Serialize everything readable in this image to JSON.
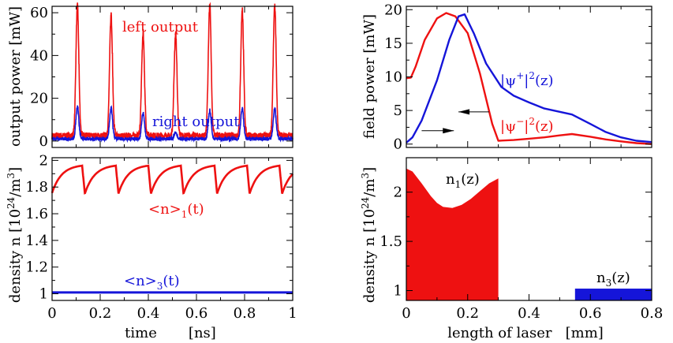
{
  "colors": {
    "red": "#ee1111",
    "blue": "#1515d9",
    "black": "#000000"
  },
  "chart_data": [
    {
      "id": "output_power",
      "type": "line",
      "xlabel": "",
      "ylabel": "output power [mW]",
      "xlim": [
        0,
        1
      ],
      "ylim": [
        -3,
        63
      ],
      "xticks": [
        0,
        0.2,
        0.4,
        0.6,
        0.8,
        1
      ],
      "yticks": [
        0,
        20,
        40,
        60
      ],
      "ytick_labels": [
        "0",
        "20",
        "40",
        "60"
      ],
      "annotations": [
        {
          "text": "left  output",
          "color": "red"
        },
        {
          "text": "right output",
          "color": "blue"
        }
      ],
      "series": [
        {
          "color": "red",
          "pulse_times": [
            0.105,
            0.245,
            0.378,
            0.513,
            0.655,
            0.79,
            0.925
          ],
          "pulse_peaks": [
            60,
            56,
            47,
            47,
            60,
            58,
            60
          ],
          "baseline": 2.5,
          "noise": 1.5
        },
        {
          "color": "blue",
          "pulse_times": [
            0.105,
            0.245,
            0.378,
            0.513,
            0.655,
            0.79,
            0.925
          ],
          "pulse_peaks": [
            15,
            14,
            12,
            3,
            13,
            14,
            14
          ],
          "baseline": 1.0,
          "noise": 0.8
        }
      ]
    },
    {
      "id": "density_time",
      "type": "line",
      "xlabel": "time       [ns]",
      "ylabel": "density n  [10²⁴/m³]",
      "xlim": [
        0,
        1
      ],
      "ylim": [
        0.95,
        2.02
      ],
      "xticks": [
        0,
        0.2,
        0.4,
        0.6,
        0.8,
        1
      ],
      "xtick_labels": [
        "0",
        "0.2",
        "0.4",
        "0.6",
        "0.8",
        "1"
      ],
      "yticks": [
        1,
        1.2,
        1.4,
        1.6,
        1.8,
        2
      ],
      "ytick_labels": [
        "1",
        "1.2",
        "1.4",
        "1.6",
        "1.8",
        "2"
      ],
      "annotations": [
        {
          "text": "<n>1(t)",
          "color": "red"
        },
        {
          "text": "<n>3(t)",
          "color": "blue"
        }
      ],
      "series": [
        {
          "color": "red",
          "sawtooth_min": 1.75,
          "sawtooth_max": 1.96,
          "drop_times": [
            0.125,
            0.265,
            0.4,
            0.535,
            0.675,
            0.81,
            0.945
          ]
        },
        {
          "color": "blue",
          "constant": 1.01
        }
      ]
    },
    {
      "id": "field_power",
      "type": "line",
      "xlabel": "",
      "ylabel": "field power [mW]",
      "xlim": [
        0,
        0.8
      ],
      "ylim": [
        -0.5,
        20.5
      ],
      "xticks": [
        0,
        0.2,
        0.4,
        0.6,
        0.8
      ],
      "yticks": [
        0,
        5,
        10,
        15,
        20
      ],
      "ytick_labels": [
        "0",
        "5",
        "10",
        "15",
        "20"
      ],
      "annotations": [
        {
          "text": "|ψ⁺|²(z)",
          "color": "blue"
        },
        {
          "text": "|ψ⁻|²(z)",
          "color": "red"
        }
      ],
      "series": [
        {
          "color": "red",
          "x": [
            0,
            0.015,
            0.03,
            0.06,
            0.1,
            0.13,
            0.16,
            0.2,
            0.24,
            0.28,
            0.3,
            0.35,
            0.4,
            0.45,
            0.5,
            0.54,
            0.6,
            0.65,
            0.7,
            0.75,
            0.8
          ],
          "y": [
            9.8,
            9.9,
            11.5,
            15.5,
            18.7,
            19.5,
            19.0,
            16.5,
            10.5,
            3.0,
            0.5,
            0.6,
            0.8,
            1.0,
            1.3,
            1.5,
            1.1,
            0.7,
            0.4,
            0.15,
            0.0
          ]
        },
        {
          "color": "blue",
          "x": [
            0,
            0.02,
            0.05,
            0.1,
            0.14,
            0.17,
            0.19,
            0.22,
            0.26,
            0.31,
            0.35,
            0.4,
            0.45,
            0.5,
            0.54,
            0.6,
            0.65,
            0.7,
            0.75,
            0.8
          ],
          "y": [
            0.2,
            1.0,
            3.5,
            9.5,
            15.5,
            19.0,
            19.3,
            16.5,
            12.0,
            8.5,
            7.2,
            6.2,
            5.3,
            4.8,
            4.4,
            3.0,
            1.8,
            1.0,
            0.5,
            0.3
          ]
        }
      ],
      "arrows": [
        {
          "direction": "right",
          "from": [
            0.05,
            2.0
          ],
          "to": [
            0.155,
            2.0
          ]
        },
        {
          "direction": "left",
          "from": [
            0.27,
            4.8
          ],
          "to": [
            0.17,
            4.8
          ]
        }
      ]
    },
    {
      "id": "density_z",
      "type": "area",
      "xlabel": "length of laser   [mm]",
      "ylabel": "density n  [10²⁴/m³]",
      "xlim": [
        0,
        0.8
      ],
      "ylim": [
        0.9,
        2.35
      ],
      "xticks": [
        0,
        0.2,
        0.4,
        0.6,
        0.8
      ],
      "xtick_labels": [
        "0",
        "0.2",
        "0.4",
        "0.6",
        "0.8"
      ],
      "yticks": [
        1,
        1.5,
        2
      ],
      "ytick_labels": [
        "1",
        "1.5",
        "2"
      ],
      "annotations": [
        {
          "text": "n1(z)",
          "color": "black"
        },
        {
          "text": "n3(z)",
          "color": "black"
        }
      ],
      "series": [
        {
          "color": "red",
          "x": [
            0,
            0.02,
            0.05,
            0.08,
            0.1,
            0.12,
            0.15,
            0.18,
            0.21,
            0.24,
            0.27,
            0.3
          ],
          "y": [
            2.24,
            2.21,
            2.09,
            1.96,
            1.89,
            1.85,
            1.84,
            1.87,
            1.93,
            2.01,
            2.09,
            2.14
          ]
        },
        {
          "color": "blue",
          "x": [
            0.55,
            0.8
          ],
          "y": [
            1.02,
            1.02
          ]
        }
      ]
    }
  ]
}
